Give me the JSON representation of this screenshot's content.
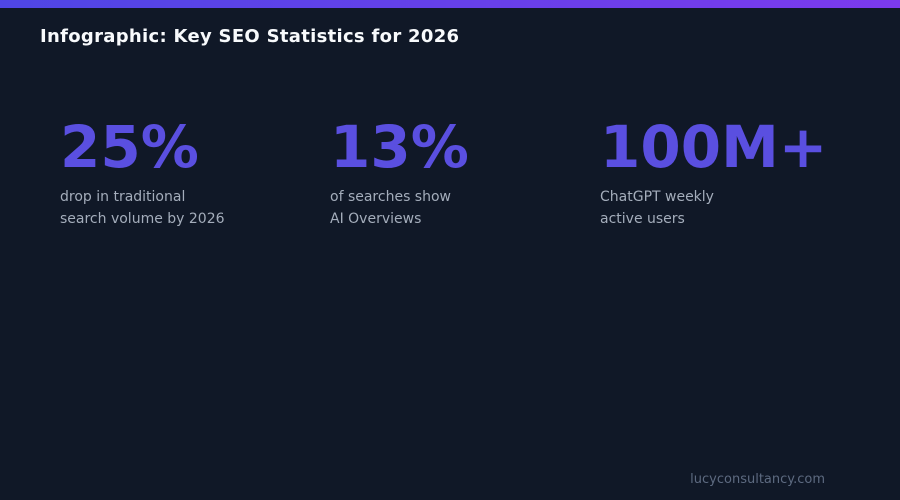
{
  "page": {
    "title": "Infographic: Key SEO Statistics for 2026",
    "footer": "lucyconsultancy.com"
  },
  "colors": {
    "background": "#101827",
    "bar_gradient_start": "#4f46e5",
    "bar_gradient_end": "#7c3aed",
    "stat_value": "#5a4fe0",
    "label_text": "#a4adbb",
    "title_text": "#f8fafc",
    "footer_text": "#5d6a80"
  },
  "stats": [
    {
      "value": "25%",
      "label_line1": "drop in traditional",
      "label_line2": "search volume by 2026"
    },
    {
      "value": "13%",
      "label_line1": "of searches show",
      "label_line2": "AI Overviews"
    },
    {
      "value": "100M+",
      "label_line1": "ChatGPT weekly",
      "label_line2": "active users"
    }
  ]
}
